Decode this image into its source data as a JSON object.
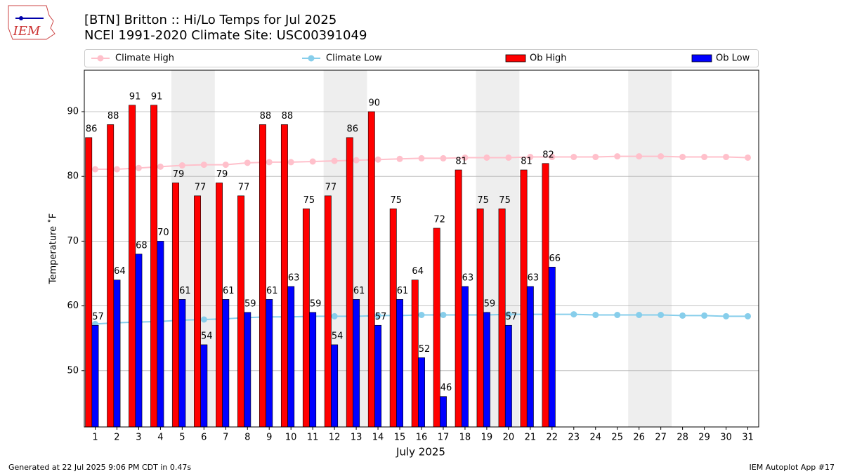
{
  "logo_text": "IEM",
  "footer_left": "Generated at 22 Jul 2025 9:06 PM CDT in 0.47s",
  "footer_right": "IEM Autoplot App #17",
  "chart_data": {
    "type": "bar",
    "title": "[BTN] Britton :: Hi/Lo Temps for Jul 2025",
    "subtitle": "NCEI 1991-2020 Climate Site: USC00391049",
    "x_label": "July 2025",
    "y_label": "Temperature ˚F",
    "x": [
      1,
      2,
      3,
      4,
      5,
      6,
      7,
      8,
      9,
      10,
      11,
      12,
      13,
      14,
      15,
      16,
      17,
      18,
      19,
      20,
      21,
      22,
      23,
      24,
      25,
      26,
      27,
      28,
      29,
      30,
      31
    ],
    "xlim": [
      0.5,
      31.5
    ],
    "xticks": [
      1,
      2,
      3,
      4,
      5,
      6,
      7,
      8,
      9,
      10,
      11,
      12,
      13,
      14,
      15,
      16,
      17,
      18,
      19,
      20,
      21,
      22,
      23,
      24,
      25,
      26,
      27,
      28,
      29,
      30,
      31
    ],
    "ylim": [
      41.3,
      96.4
    ],
    "yticks": [
      50,
      60,
      70,
      80,
      90
    ],
    "grid": true,
    "legend": "top",
    "shaded_spans": [
      [
        4.5,
        6.5
      ],
      [
        11.5,
        13.5
      ],
      [
        18.5,
        20.5
      ],
      [
        25.5,
        27.5
      ]
    ],
    "shade_color": "#eeeeee",
    "series": [
      {
        "name": "Climate High",
        "type": "line",
        "color": "#ffc0cb",
        "values": [
          81.1,
          81.1,
          81.3,
          81.5,
          81.7,
          81.8,
          81.8,
          82.1,
          82.2,
          82.2,
          82.3,
          82.4,
          82.5,
          82.6,
          82.7,
          82.8,
          82.8,
          82.9,
          82.9,
          82.9,
          83.0,
          83.0,
          83.0,
          83.0,
          83.1,
          83.1,
          83.1,
          83.0,
          83.0,
          83.0,
          82.9
        ]
      },
      {
        "name": "Climate Low",
        "type": "line",
        "color": "#87ceeb",
        "values": [
          57.2,
          57.4,
          57.5,
          57.6,
          57.8,
          57.9,
          58.0,
          58.2,
          58.3,
          58.3,
          58.4,
          58.4,
          58.4,
          58.5,
          58.5,
          58.6,
          58.6,
          58.6,
          58.6,
          58.7,
          58.7,
          58.7,
          58.7,
          58.6,
          58.6,
          58.6,
          58.6,
          58.5,
          58.5,
          58.4,
          58.4
        ]
      },
      {
        "name": "Ob High",
        "type": "bar",
        "color": "#ff0000",
        "values": [
          86,
          88,
          91,
          91,
          79,
          77,
          79,
          77,
          88,
          88,
          75,
          77,
          86,
          90,
          75,
          64,
          72,
          81,
          75,
          75,
          81,
          82,
          null,
          null,
          null,
          null,
          null,
          null,
          null,
          null,
          null
        ]
      },
      {
        "name": "Ob Low",
        "type": "bar",
        "color": "#0000ff",
        "values": [
          57,
          64,
          68,
          70,
          61,
          54,
          61,
          59,
          61,
          63,
          59,
          54,
          61,
          57,
          61,
          52,
          46,
          63,
          59,
          57,
          63,
          66,
          null,
          null,
          null,
          null,
          null,
          null,
          null,
          null,
          null
        ]
      }
    ]
  }
}
